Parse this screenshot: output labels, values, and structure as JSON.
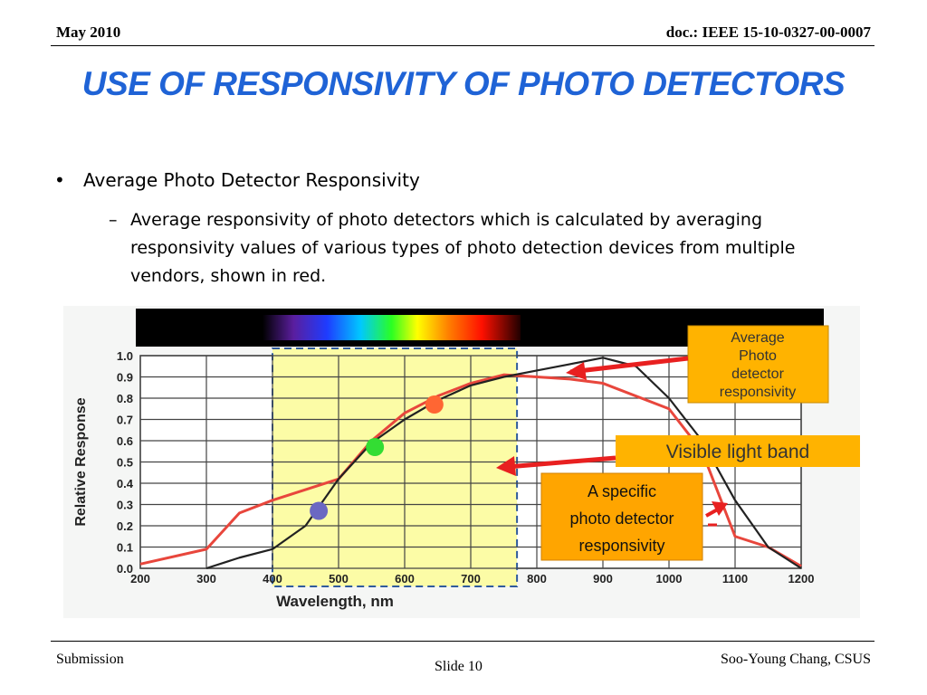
{
  "header": {
    "date": "May 2010",
    "doc": "doc.: IEEE 15-10-0327-00-0007"
  },
  "title": "USE OF RESPONSIVITY OF PHOTO DETECTORS",
  "bullets": {
    "level1": "Average Photo Detector Responsivity",
    "level2": "Average responsivity of photo detectors which is calculated by averaging responsivity values of various types of photo detection devices from multiple vendors, shown in red."
  },
  "footer": {
    "left": "Submission",
    "center": "Slide 10",
    "right": "Soo-Young Chang, CSUS"
  },
  "chart_data": {
    "type": "line",
    "xlabel": "Wavelength, nm",
    "ylabel": "Relative Response",
    "xlim": [
      200,
      1200
    ],
    "ylim": [
      0.0,
      1.0
    ],
    "xticks": [
      "200",
      "300",
      "400",
      "500",
      "600",
      "700",
      "800",
      "900",
      "1000",
      "1100",
      "1200"
    ],
    "yticks": [
      "0.0",
      "0.1",
      "0.2",
      "0.3",
      "0.4",
      "0.5",
      "0.6",
      "0.7",
      "0.8",
      "0.9",
      "1.0"
    ],
    "grid": true,
    "visible_band": [
      400,
      770
    ],
    "series": [
      {
        "name": "Average Photo detector responsivity",
        "color": "#e8463c",
        "x": [
          200,
          300,
          350,
          400,
          500,
          550,
          600,
          650,
          700,
          750,
          800,
          850,
          900,
          1000,
          1050,
          1100,
          1150,
          1200
        ],
        "y": [
          0.02,
          0.09,
          0.26,
          0.32,
          0.42,
          0.6,
          0.73,
          0.81,
          0.87,
          0.91,
          0.9,
          0.89,
          0.87,
          0.75,
          0.55,
          0.15,
          0.1,
          0.01
        ]
      },
      {
        "name": "A specific photo detector responsivity",
        "color": "#222222",
        "x": [
          300,
          350,
          400,
          450,
          500,
          550,
          600,
          650,
          700,
          750,
          800,
          850,
          900,
          950,
          1000,
          1050,
          1100,
          1150,
          1200
        ],
        "y": [
          0.0,
          0.05,
          0.09,
          0.2,
          0.42,
          0.59,
          0.7,
          0.79,
          0.86,
          0.9,
          0.93,
          0.96,
          0.99,
          0.95,
          0.8,
          0.6,
          0.32,
          0.1,
          0.0
        ]
      }
    ],
    "markers": [
      {
        "x": 470,
        "y": 0.27,
        "color": "#6b68c2"
      },
      {
        "x": 555,
        "y": 0.57,
        "color": "#33dd33"
      },
      {
        "x": 645,
        "y": 0.77,
        "color": "#ff6633"
      }
    ],
    "annotations": [
      {
        "label": "Average Photo detector responsivity",
        "box_color": "#ffb300"
      },
      {
        "label": "Visible light band",
        "box_color": "#ffb300"
      },
      {
        "label": "A specific photo detector responsivity",
        "box_color": "#ffa500"
      }
    ]
  }
}
